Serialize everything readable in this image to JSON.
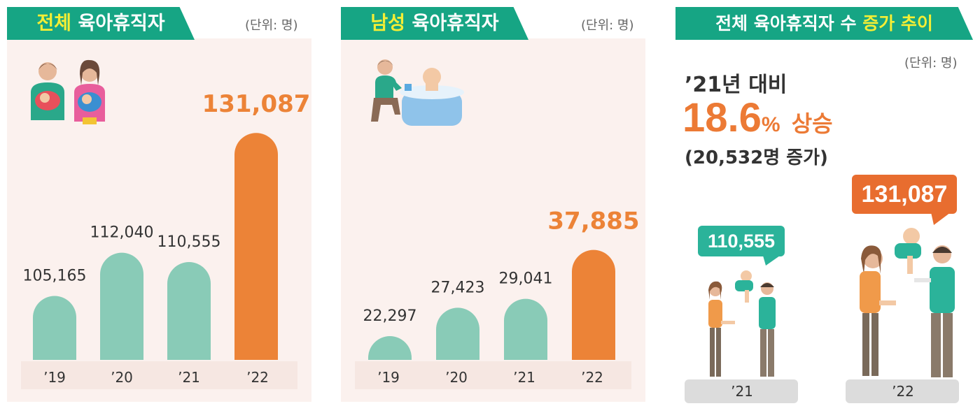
{
  "panels": [
    {
      "tab_plain": "육아휴직자",
      "tab_highlight": "전체",
      "unit": "(단위: 명)"
    },
    {
      "tab_plain": "육아휴직자",
      "tab_highlight": "남성",
      "unit": "(단위: 명)"
    },
    {
      "tab_plain": "전체 육아휴직자 수",
      "tab_highlight": "증가 추이",
      "unit": "(단위: 명)"
    }
  ],
  "summary": {
    "line1": "’21년 대비",
    "percent": "18.6",
    "percent_sign": "%",
    "rise": "상승",
    "line3": "(20,532명 증가)"
  },
  "bubbles": {
    "y21_value": "110,555",
    "y22_value": "131,087",
    "y21_label": "’21",
    "y22_label": "’22"
  },
  "colors": {
    "teal": "#89cbb7",
    "orange": "#ec8337",
    "tab": "#16a584",
    "highlight": "#f4ee35",
    "bubble_teal": "#2bb39a",
    "bubble_orange": "#e86d2f"
  },
  "chart_data": [
    {
      "type": "bar",
      "title": "전체 육아휴직자",
      "categories": [
        "’19",
        "’20",
        "’21",
        "’22"
      ],
      "values": [
        105165,
        112040,
        110555,
        131087
      ],
      "value_labels": [
        "105,165",
        "112,040",
        "110,555",
        "131,087"
      ],
      "ylim": [
        95000,
        135000
      ]
    },
    {
      "type": "bar",
      "title": "남성 육아휴직자",
      "categories": [
        "’19",
        "’20",
        "’21",
        "’22"
      ],
      "values": [
        22297,
        27423,
        29041,
        37885
      ],
      "value_labels": [
        "22,297",
        "27,423",
        "29,041",
        "37,885"
      ],
      "ylim": [
        18000,
        41000
      ]
    }
  ]
}
